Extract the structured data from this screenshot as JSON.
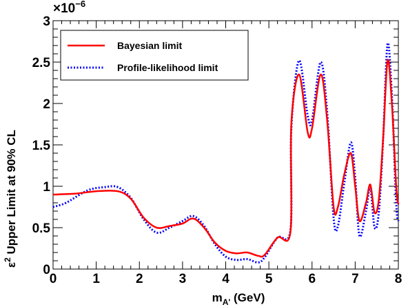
{
  "chart_data": {
    "type": "line",
    "xlabel": {
      "main": "m",
      "sub": "A'",
      "unit": " (GeV)"
    },
    "ylabel": {
      "symbol": "ε",
      "sup": "2",
      "rest": " Upper Limit at 90% CL"
    },
    "multiplier": {
      "base": "×10",
      "exp": "−6"
    },
    "xlim": [
      0,
      8
    ],
    "ylim": [
      0,
      3
    ],
    "xticks": [
      0,
      1,
      2,
      3,
      4,
      5,
      6,
      7,
      8
    ],
    "xtick_labels": [
      "0",
      "1",
      "2",
      "3",
      "4",
      "5",
      "6",
      "7",
      "8"
    ],
    "yticks": [
      0,
      0.5,
      1,
      1.5,
      2,
      2.5,
      3
    ],
    "ytick_labels": [
      "0",
      "0.5",
      "1",
      "1.5",
      "2",
      "2.5",
      "3"
    ],
    "grid": false,
    "legend_position": "top-left",
    "series": [
      {
        "name": "Bayesian limit",
        "color": "#ff0000",
        "style": "solid",
        "points": [
          [
            0,
            0.9
          ],
          [
            0.5,
            0.91
          ],
          [
            1.0,
            0.94
          ],
          [
            1.5,
            0.94
          ],
          [
            1.8,
            0.85
          ],
          [
            2.1,
            0.62
          ],
          [
            2.4,
            0.5
          ],
          [
            2.7,
            0.52
          ],
          [
            3.0,
            0.55
          ],
          [
            3.25,
            0.61
          ],
          [
            3.5,
            0.5
          ],
          [
            3.75,
            0.32
          ],
          [
            4.0,
            0.22
          ],
          [
            4.25,
            0.19
          ],
          [
            4.5,
            0.2
          ],
          [
            4.75,
            0.16
          ],
          [
            4.9,
            0.17
          ],
          [
            5.2,
            0.38
          ],
          [
            5.5,
            0.45
          ],
          [
            5.52,
            1.75
          ],
          [
            5.7,
            2.35
          ],
          [
            5.9,
            1.65
          ],
          [
            6.0,
            1.7
          ],
          [
            6.2,
            2.35
          ],
          [
            6.35,
            1.8
          ],
          [
            6.5,
            0.75
          ],
          [
            6.6,
            0.75
          ],
          [
            6.75,
            1.15
          ],
          [
            6.9,
            1.4
          ],
          [
            7.0,
            1.0
          ],
          [
            7.1,
            0.58
          ],
          [
            7.25,
            0.8
          ],
          [
            7.35,
            1.02
          ],
          [
            7.45,
            0.68
          ],
          [
            7.55,
            0.85
          ],
          [
            7.65,
            1.6
          ],
          [
            7.75,
            2.52
          ],
          [
            7.85,
            2.0
          ],
          [
            7.95,
            1.0
          ],
          [
            8.0,
            0.78
          ]
        ]
      },
      {
        "name": "Profile-likelihood limit",
        "color": "#0000ff",
        "style": "dotted",
        "points": [
          [
            0,
            0.75
          ],
          [
            0.3,
            0.8
          ],
          [
            0.8,
            0.95
          ],
          [
            1.2,
            0.99
          ],
          [
            1.5,
            0.99
          ],
          [
            1.8,
            0.86
          ],
          [
            2.1,
            0.6
          ],
          [
            2.4,
            0.44
          ],
          [
            2.7,
            0.5
          ],
          [
            3.0,
            0.58
          ],
          [
            3.25,
            0.64
          ],
          [
            3.5,
            0.52
          ],
          [
            3.75,
            0.3
          ],
          [
            4.0,
            0.15
          ],
          [
            4.25,
            0.11
          ],
          [
            4.5,
            0.12
          ],
          [
            4.75,
            0.08
          ],
          [
            4.9,
            0.14
          ],
          [
            5.2,
            0.38
          ],
          [
            5.5,
            0.47
          ],
          [
            5.52,
            1.7
          ],
          [
            5.7,
            2.52
          ],
          [
            5.9,
            1.85
          ],
          [
            6.0,
            1.8
          ],
          [
            6.2,
            2.5
          ],
          [
            6.35,
            1.9
          ],
          [
            6.5,
            0.62
          ],
          [
            6.6,
            0.52
          ],
          [
            6.75,
            1.05
          ],
          [
            6.9,
            1.53
          ],
          [
            7.0,
            1.1
          ],
          [
            7.1,
            0.4
          ],
          [
            7.25,
            0.7
          ],
          [
            7.35,
            0.98
          ],
          [
            7.45,
            0.5
          ],
          [
            7.55,
            0.7
          ],
          [
            7.65,
            1.6
          ],
          [
            7.75,
            2.72
          ],
          [
            7.85,
            2.1
          ],
          [
            7.95,
            0.8
          ],
          [
            8.0,
            0.58
          ]
        ]
      }
    ]
  }
}
